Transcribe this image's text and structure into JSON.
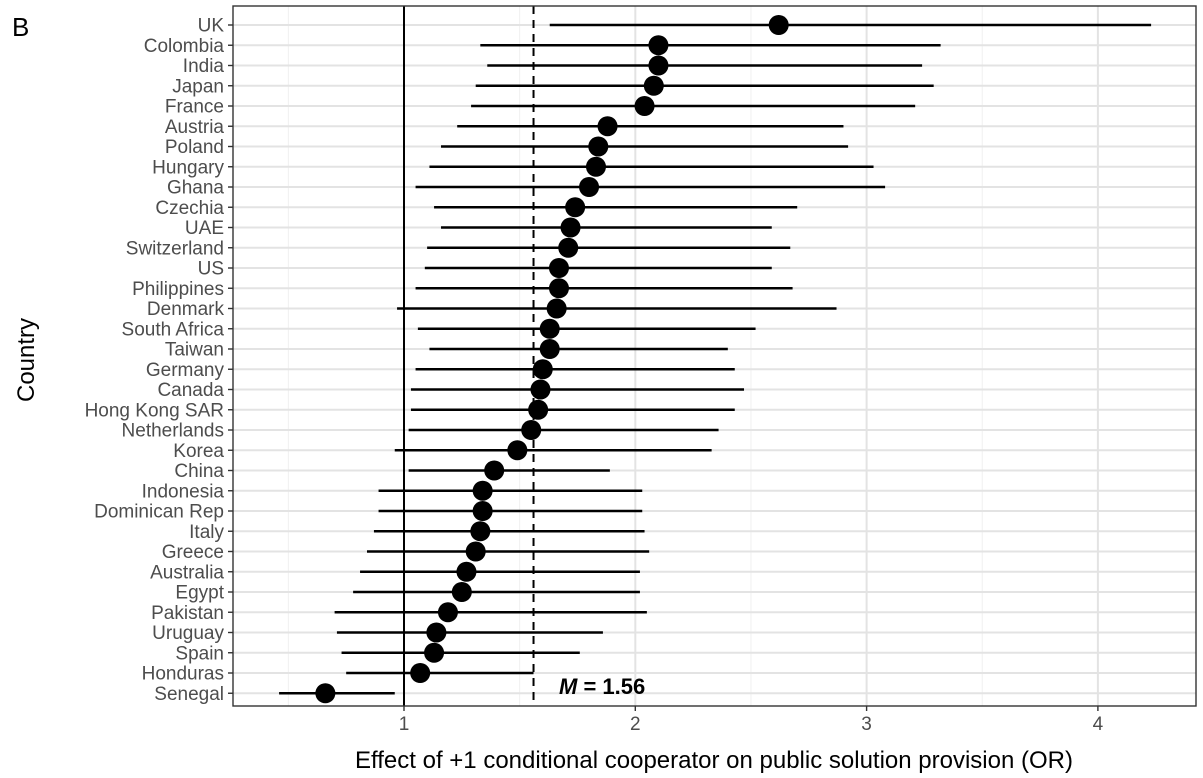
{
  "panel_label": "B",
  "chart_data": {
    "type": "forest",
    "xlabel": "Effect of +1 conditional cooperator on public solution provision (OR)",
    "ylabel": "Country",
    "xlim": [
      0.28,
      4.36
    ],
    "xticks": [
      1,
      2,
      3,
      4
    ],
    "reference_line": 1,
    "mean_line": 1.56,
    "mean_annotation": {
      "symbol": "M",
      "text": " = 1.56"
    },
    "grid": true,
    "countries": [
      {
        "name": "UK",
        "or": 2.62,
        "lo": 1.63,
        "hi": 4.23
      },
      {
        "name": "Colombia",
        "or": 2.1,
        "lo": 1.33,
        "hi": 3.32
      },
      {
        "name": "India",
        "or": 2.1,
        "lo": 1.36,
        "hi": 3.24
      },
      {
        "name": "Japan",
        "or": 2.08,
        "lo": 1.31,
        "hi": 3.29
      },
      {
        "name": "France",
        "or": 2.04,
        "lo": 1.29,
        "hi": 3.21
      },
      {
        "name": "Austria",
        "or": 1.88,
        "lo": 1.23,
        "hi": 2.9
      },
      {
        "name": "Poland",
        "or": 1.84,
        "lo": 1.16,
        "hi": 2.92
      },
      {
        "name": "Hungary",
        "or": 1.83,
        "lo": 1.11,
        "hi": 3.03
      },
      {
        "name": "Ghana",
        "or": 1.8,
        "lo": 1.05,
        "hi": 3.08
      },
      {
        "name": "Czechia",
        "or": 1.74,
        "lo": 1.13,
        "hi": 2.7
      },
      {
        "name": "UAE",
        "or": 1.72,
        "lo": 1.16,
        "hi": 2.59
      },
      {
        "name": "Switzerland",
        "or": 1.71,
        "lo": 1.1,
        "hi": 2.67
      },
      {
        "name": "US",
        "or": 1.67,
        "lo": 1.09,
        "hi": 2.59
      },
      {
        "name": "Philippines",
        "or": 1.67,
        "lo": 1.05,
        "hi": 2.68
      },
      {
        "name": "Denmark",
        "or": 1.66,
        "lo": 0.97,
        "hi": 2.87
      },
      {
        "name": "South Africa",
        "or": 1.63,
        "lo": 1.06,
        "hi": 2.52
      },
      {
        "name": "Taiwan",
        "or": 1.63,
        "lo": 1.11,
        "hi": 2.4
      },
      {
        "name": "Germany",
        "or": 1.6,
        "lo": 1.05,
        "hi": 2.43
      },
      {
        "name": "Canada",
        "or": 1.59,
        "lo": 1.03,
        "hi": 2.47
      },
      {
        "name": "Hong Kong SAR",
        "or": 1.58,
        "lo": 1.03,
        "hi": 2.43
      },
      {
        "name": "Netherlands",
        "or": 1.55,
        "lo": 1.02,
        "hi": 2.36
      },
      {
        "name": "Korea",
        "or": 1.49,
        "lo": 0.96,
        "hi": 2.33
      },
      {
        "name": "China",
        "or": 1.39,
        "lo": 1.02,
        "hi": 1.89
      },
      {
        "name": "Indonesia",
        "or": 1.34,
        "lo": 0.89,
        "hi": 2.03
      },
      {
        "name": "Dominican Rep",
        "or": 1.34,
        "lo": 0.89,
        "hi": 2.03
      },
      {
        "name": "Italy",
        "or": 1.33,
        "lo": 0.87,
        "hi": 2.04
      },
      {
        "name": "Greece",
        "or": 1.31,
        "lo": 0.84,
        "hi": 2.06
      },
      {
        "name": "Australia",
        "or": 1.27,
        "lo": 0.81,
        "hi": 2.02
      },
      {
        "name": "Egypt",
        "or": 1.25,
        "lo": 0.78,
        "hi": 2.02
      },
      {
        "name": "Pakistan",
        "or": 1.19,
        "lo": 0.7,
        "hi": 2.05
      },
      {
        "name": "Uruguay",
        "or": 1.14,
        "lo": 0.71,
        "hi": 1.86
      },
      {
        "name": "Spain",
        "or": 1.13,
        "lo": 0.73,
        "hi": 1.76
      },
      {
        "name": "Honduras",
        "or": 1.07,
        "lo": 0.75,
        "hi": 1.56
      },
      {
        "name": "Senegal",
        "or": 0.66,
        "lo": 0.46,
        "hi": 0.96
      }
    ]
  }
}
